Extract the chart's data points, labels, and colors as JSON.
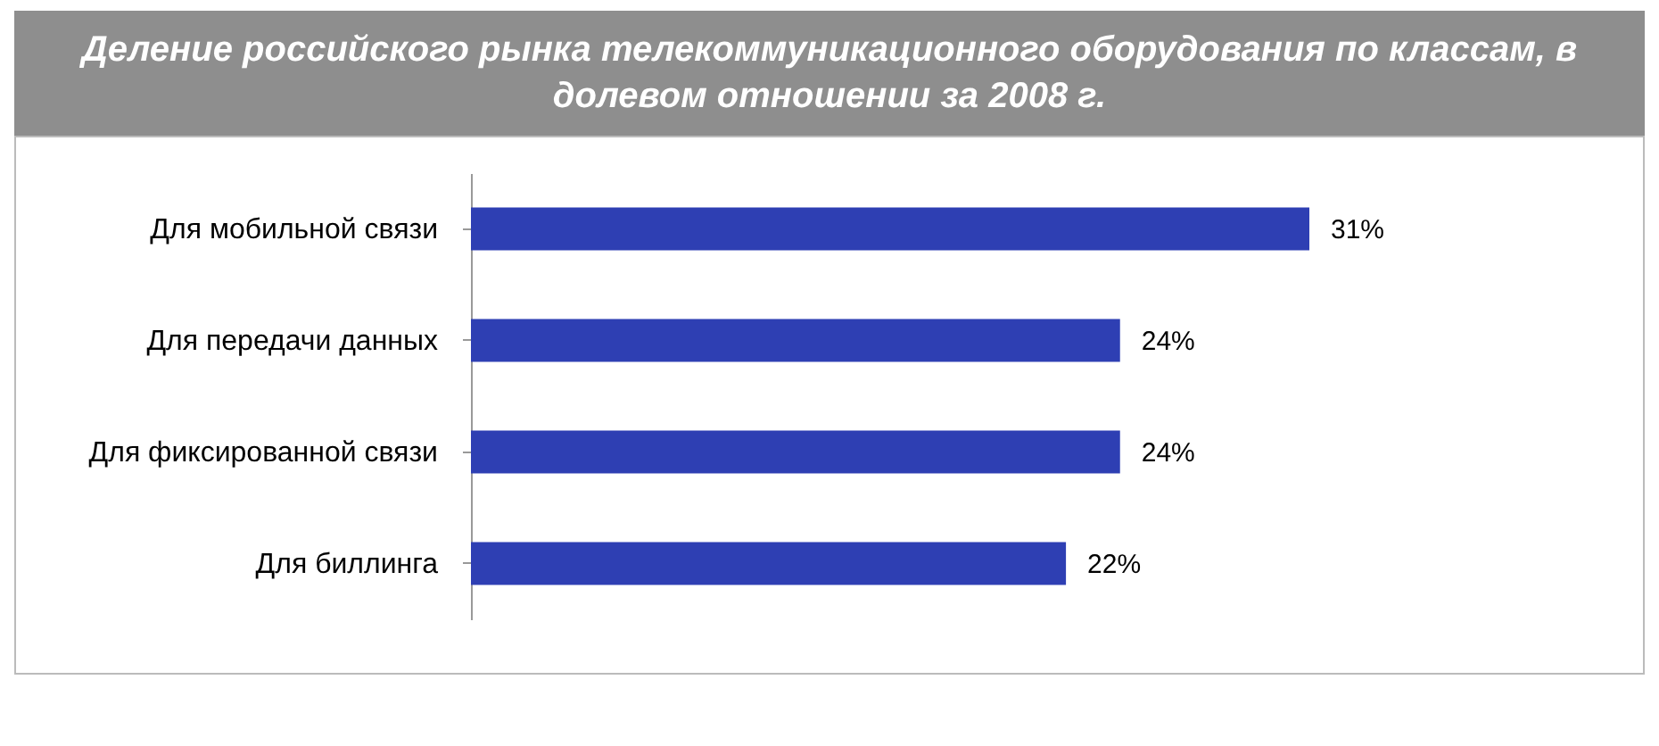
{
  "chart_data": {
    "type": "bar",
    "orientation": "horizontal",
    "title": "Деление российского рынка телекоммуникационного оборудования по классам, в долевом отношении за 2008 г.",
    "categories": [
      "Для мобильной связи",
      "Для передачи данных",
      "Для фиксированной связи",
      "Для биллинга"
    ],
    "values": [
      31,
      24,
      24,
      22
    ],
    "color": "#2e3fb3",
    "data_labels": true,
    "value_labels": [
      "31%",
      "24%",
      "24%",
      "22%"
    ]
  }
}
